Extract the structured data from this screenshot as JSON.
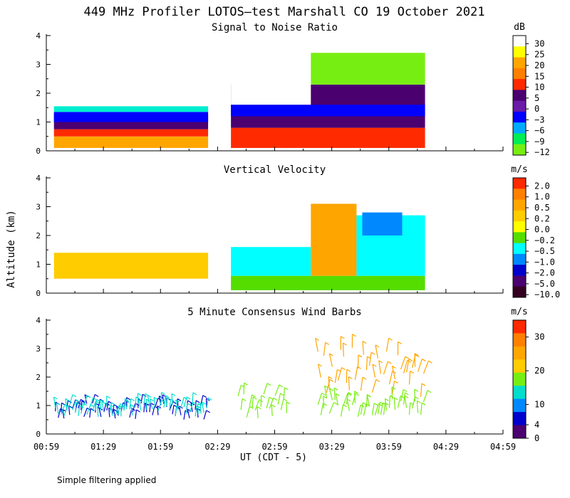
{
  "figure": {
    "title": "449 MHz Profiler LOTOS—test Marshall CO 19 October 2021",
    "ylabel": "Altitude (km)",
    "xlabel": "UT  (CDT - 5)",
    "footnote": "Simple filtering applied"
  },
  "chart_data": [
    {
      "type": "heatmap",
      "title": "Signal to Noise Ratio",
      "colorbar_unit": "dB",
      "colorbar_labels": [
        "30",
        "25",
        "20",
        "15",
        "10",
        "5",
        "0",
        "−3",
        "−6",
        "−9",
        "−12"
      ],
      "colorbar_colors": [
        "#ffffff",
        "#ffff00",
        "#ffa500",
        "#ff7f00",
        "#ff2a00",
        "#4b0070",
        "#6a1ba8",
        "#0000ff",
        "#00aaff",
        "#00ee55",
        "#77ee11"
      ],
      "xlim_hours": [
        0.983,
        4.983
      ],
      "ylim_km": [
        0,
        4
      ],
      "yticks": [
        "0",
        "1",
        "2",
        "3",
        "4"
      ],
      "layers": [
        {
          "t0": 1.05,
          "t1": 2.4,
          "h0": 0.1,
          "h1": 0.5,
          "color": "#ffa500"
        },
        {
          "t0": 1.05,
          "t1": 2.4,
          "h0": 0.5,
          "h1": 0.75,
          "color": "#ff2a00"
        },
        {
          "t0": 1.05,
          "t1": 2.4,
          "h0": 0.75,
          "h1": 1.3,
          "color": "#4b0070"
        },
        {
          "t0": 1.05,
          "t1": 2.4,
          "h0": 1.0,
          "h1": 1.35,
          "color": "#0000ff"
        },
        {
          "t0": 1.05,
          "t1": 2.4,
          "h0": 1.35,
          "h1": 1.55,
          "color": "#00eed0"
        },
        {
          "t0": 1.05,
          "t1": 2.4,
          "h0": 1.55,
          "h1": 4.0,
          "color": "#ffffff"
        },
        {
          "t0": 2.6,
          "t1": 4.3,
          "h0": 0.1,
          "h1": 0.8,
          "color": "#ff2a00"
        },
        {
          "t0": 2.6,
          "t1": 4.3,
          "h0": 0.8,
          "h1": 2.3,
          "color": "#4b0070"
        },
        {
          "t0": 2.6,
          "t1": 4.3,
          "h0": 1.2,
          "h1": 1.6,
          "color": "#0000ff"
        },
        {
          "t0": 2.6,
          "t1": 3.3,
          "h0": 1.6,
          "h1": 4.0,
          "color": "#ffffff"
        },
        {
          "t0": 3.3,
          "t1": 4.3,
          "h0": 2.3,
          "h1": 3.4,
          "color": "#77ee11"
        }
      ]
    },
    {
      "type": "heatmap",
      "title": "Vertical Velocity",
      "colorbar_unit": "m/s",
      "colorbar_labels": [
        "2.0",
        "1.0",
        "0.5",
        "0.2",
        "0.0",
        "−0.2",
        "−0.5",
        "−1.0",
        "−2.0",
        "−5.0",
        "−10.0"
      ],
      "colorbar_colors": [
        "#ff2a00",
        "#ff7f00",
        "#ffa500",
        "#ffcc00",
        "#ffff00",
        "#55dd00",
        "#00ffff",
        "#0088ff",
        "#0000cc",
        "#4b0070",
        "#330022"
      ],
      "xlim_hours": [
        0.983,
        4.983
      ],
      "ylim_km": [
        0,
        4
      ],
      "yticks": [
        "0",
        "1",
        "2",
        "3",
        "4"
      ],
      "layers": [
        {
          "t0": 1.05,
          "t1": 2.4,
          "h0": 0.5,
          "h1": 1.4,
          "color": "#ffcc00"
        },
        {
          "t0": 2.6,
          "t1": 4.3,
          "h0": 0.1,
          "h1": 0.6,
          "color": "#55dd00"
        },
        {
          "t0": 2.6,
          "t1": 3.3,
          "h0": 0.6,
          "h1": 1.6,
          "color": "#00ffff"
        },
        {
          "t0": 3.3,
          "t1": 3.7,
          "h0": 0.6,
          "h1": 3.1,
          "color": "#ffa500"
        },
        {
          "t0": 3.7,
          "t1": 4.3,
          "h0": 0.6,
          "h1": 2.7,
          "color": "#00ffff"
        },
        {
          "t0": 3.75,
          "t1": 4.1,
          "h0": 2.0,
          "h1": 2.8,
          "color": "#0088ff"
        }
      ]
    },
    {
      "type": "scatter",
      "title": "5 Minute Consensus Wind Barbs",
      "colorbar_unit": "m/s",
      "colorbar_labels": [
        "30",
        "20",
        "10",
        "4",
        "0"
      ],
      "colorbar_colors": [
        "#ff2a00",
        "#ff7f00",
        "#ffa500",
        "#ffcc00",
        "#77ee11",
        "#00ddcc",
        "#0088ff",
        "#0000cc",
        "#4b0070"
      ],
      "colorbar_values": [
        30,
        20,
        10,
        4,
        0
      ],
      "xlim_hours": [
        0.983,
        4.983
      ],
      "ylim_km": [
        0,
        4
      ],
      "yticks": [
        "0",
        "1",
        "2",
        "3",
        "4"
      ],
      "xticks": [
        "00:59",
        "01:29",
        "01:59",
        "02:29",
        "02:59",
        "03:29",
        "03:59",
        "04:29",
        "04:59"
      ],
      "barb_groups": [
        {
          "t0": 1.05,
          "t1": 2.4,
          "h0": 0.5,
          "h1": 1.1,
          "speed": 6,
          "color": "#0000cc"
        },
        {
          "t0": 1.05,
          "t1": 2.4,
          "h0": 0.6,
          "h1": 1.1,
          "speed": 10,
          "color": "#00ddcc"
        },
        {
          "t0": 2.65,
          "t1": 3.1,
          "h0": 0.5,
          "h1": 1.5,
          "speed": 12,
          "color": "#77ee11"
        },
        {
          "t0": 3.35,
          "t1": 4.3,
          "h0": 1.3,
          "h1": 3.1,
          "speed": 18,
          "color": "#ffa500"
        },
        {
          "t0": 3.35,
          "t1": 4.3,
          "h0": 0.6,
          "h1": 1.3,
          "speed": 14,
          "color": "#77ee11"
        }
      ]
    }
  ]
}
